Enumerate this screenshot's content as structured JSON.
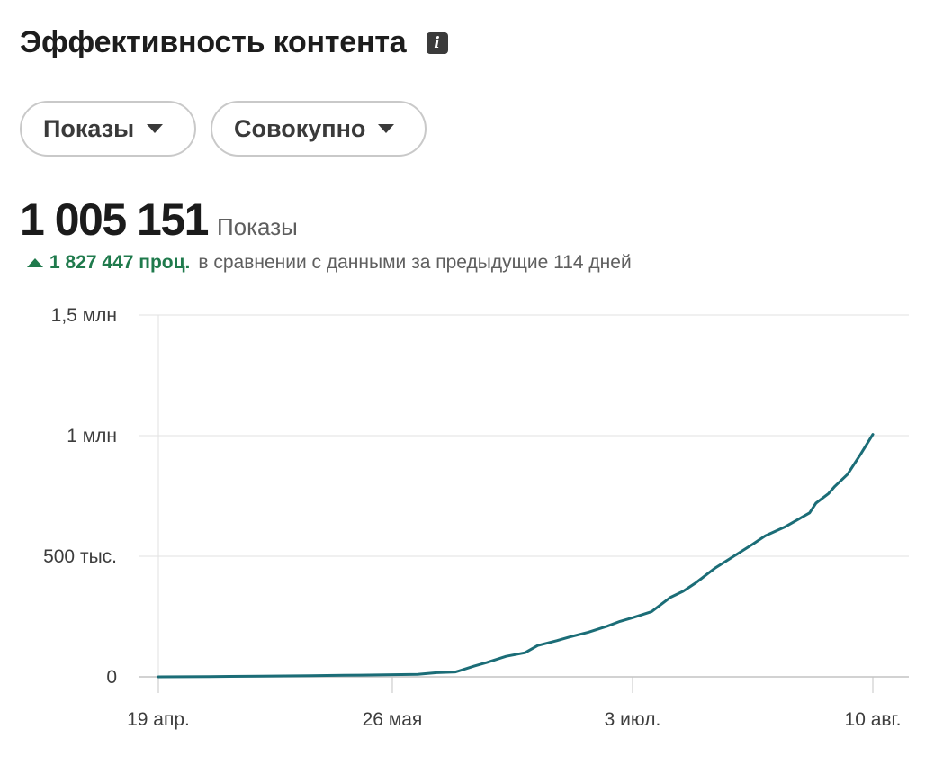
{
  "header": {
    "title": "Эффективность контента",
    "info_icon": "info-icon"
  },
  "filters": [
    {
      "label": "Показы",
      "icon": "chevron-down-icon"
    },
    {
      "label": "Совокупно",
      "icon": "chevron-down-icon"
    }
  ],
  "summary": {
    "value": "1 005 151",
    "label": "Показы",
    "change_value": "1 827 447 проц.",
    "change_text": "в сравнении с данными за предыдущие 114 дней",
    "change_color": "#1f7a4c"
  },
  "chart_data": {
    "type": "line",
    "title": "",
    "xlabel": "",
    "ylabel": "",
    "ylim": [
      0,
      1500000
    ],
    "y_ticks": [
      0,
      500000,
      1000000,
      1500000
    ],
    "y_tick_labels": [
      "0",
      "500 тыс.",
      "1 млн",
      "1,5 млн"
    ],
    "x_range": [
      "2024-04-19",
      "2024-08-10"
    ],
    "x_ticks": [
      "2024-04-19",
      "2024-05-26",
      "2024-07-03",
      "2024-08-10"
    ],
    "x_tick_labels": [
      "19 апр.",
      "26 мая",
      "3 июл.",
      "10 авг."
    ],
    "grid": true,
    "line_color": "#1b6d77",
    "series": [
      {
        "x": [
          "2024-04-19",
          "2024-04-27",
          "2024-05-05",
          "2024-05-13",
          "2024-05-21",
          "2024-05-30",
          "2024-06-02",
          "2024-06-05",
          "2024-06-08",
          "2024-06-10",
          "2024-06-13",
          "2024-06-16",
          "2024-06-18",
          "2024-06-21",
          "2024-06-23",
          "2024-06-26",
          "2024-06-29",
          "2024-07-01",
          "2024-07-03",
          "2024-07-06",
          "2024-07-09",
          "2024-07-11",
          "2024-07-13",
          "2024-07-16",
          "2024-07-19",
          "2024-07-22",
          "2024-07-24",
          "2024-07-27",
          "2024-07-29",
          "2024-07-31",
          "2024-08-01",
          "2024-08-03",
          "2024-08-04",
          "2024-08-06",
          "2024-08-08",
          "2024-08-10"
        ],
        "y": [
          0,
          1000,
          3000,
          5000,
          7000,
          10000,
          17000,
          20000,
          45000,
          60000,
          85000,
          100000,
          130000,
          150000,
          165000,
          185000,
          210000,
          230000,
          245000,
          270000,
          330000,
          355000,
          390000,
          450000,
          500000,
          550000,
          585000,
          620000,
          650000,
          680000,
          720000,
          760000,
          790000,
          840000,
          920000,
          1005151
        ]
      }
    ]
  }
}
